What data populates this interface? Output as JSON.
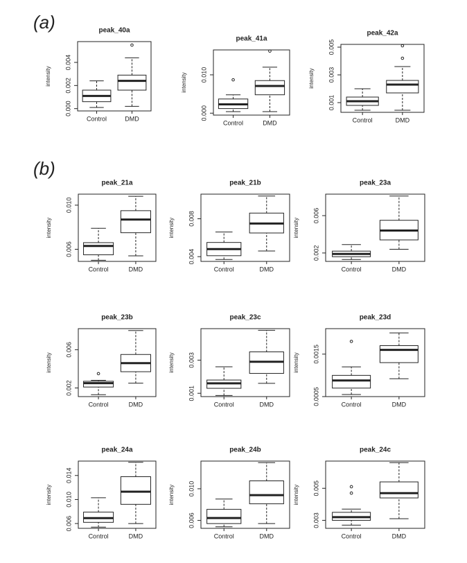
{
  "panel_labels": [
    "(a)",
    "(b)"
  ],
  "chart_data": [
    {
      "type": "box",
      "title": "peak_40a",
      "ylabel": "intensity",
      "categories": [
        "Control",
        "DMD"
      ],
      "boxes": [
        {
          "whislo": 0.0001,
          "q1": 0.0006,
          "med": 0.0011,
          "q3": 0.0016,
          "whishi": 0.0024,
          "fliers": []
        },
        {
          "whislo": 0.0002,
          "q1": 0.0016,
          "med": 0.0024,
          "q3": 0.0029,
          "whishi": 0.0044,
          "fliers": [
            0.0055
          ]
        }
      ],
      "ylim": [
        -0.0002,
        0.0058
      ],
      "yticks": [
        {
          "value": 0,
          "label": "0.000"
        },
        0.002,
        0.004
      ]
    },
    {
      "type": "box",
      "title": "peak_41a",
      "ylabel": "intensity",
      "categories": [
        "Control",
        "DMD"
      ],
      "boxes": [
        {
          "whislo": 0.0004,
          "q1": 0.0012,
          "med": 0.0023,
          "q3": 0.0037,
          "whishi": 0.0048,
          "fliers": [
            0.0087
          ]
        },
        {
          "whislo": 0.0004,
          "q1": 0.0048,
          "med": 0.0071,
          "q3": 0.0085,
          "whishi": 0.012,
          "fliers": [
            0.0162
          ]
        }
      ],
      "ylim": [
        -0.0005,
        0.0165
      ],
      "yticks": [
        {
          "value": 0,
          "label": "0.000"
        },
        {
          "value": 0.01,
          "label": "0.010"
        }
      ]
    },
    {
      "type": "box",
      "title": "peak_42a",
      "ylabel": "intensity",
      "categories": [
        "Control",
        "DMD"
      ],
      "boxes": [
        {
          "whislo": 0.00045,
          "q1": 0.0008,
          "med": 0.0011,
          "q3": 0.0014,
          "whishi": 0.002,
          "fliers": []
        },
        {
          "whislo": 0.00045,
          "q1": 0.0017,
          "med": 0.0023,
          "q3": 0.0026,
          "whishi": 0.0036,
          "fliers": [
            0.0042,
            0.0051
          ]
        }
      ],
      "ylim": [
        0.0003,
        0.0052
      ],
      "yticks": [
        0.001,
        0.003,
        0.005
      ]
    },
    {
      "type": "box",
      "title": "peak_21a",
      "ylabel": "intensity",
      "categories": [
        "Control",
        "DMD"
      ],
      "boxes": [
        {
          "whislo": 0.005,
          "q1": 0.0055,
          "med": 0.0063,
          "q3": 0.0066,
          "whishi": 0.0079,
          "fliers": []
        },
        {
          "whislo": 0.0054,
          "q1": 0.0075,
          "med": 0.0087,
          "q3": 0.0095,
          "whishi": 0.0108,
          "fliers": []
        }
      ],
      "ylim": [
        0.0049,
        0.011
      ],
      "yticks": [
        0.006,
        {
          "value": 0.01,
          "label": "0.010"
        }
      ]
    },
    {
      "type": "box",
      "title": "peak_21b",
      "ylabel": "intensity",
      "categories": [
        "Control",
        "DMD"
      ],
      "boxes": [
        {
          "whislo": 0.0037,
          "q1": 0.0041,
          "med": 0.0048,
          "q3": 0.0055,
          "whishi": 0.0066,
          "fliers": []
        },
        {
          "whislo": 0.0046,
          "q1": 0.0065,
          "med": 0.0075,
          "q3": 0.0086,
          "whishi": 0.0104,
          "fliers": []
        }
      ],
      "ylim": [
        0.0035,
        0.0106
      ],
      "yticks": [
        0.004,
        0.008
      ]
    },
    {
      "type": "box",
      "title": "peak_23a",
      "ylabel": "intensity",
      "categories": [
        "Control",
        "DMD"
      ],
      "boxes": [
        {
          "whislo": 0.0013,
          "q1": 0.0016,
          "med": 0.0019,
          "q3": 0.0022,
          "whishi": 0.0029,
          "fliers": []
        },
        {
          "whislo": 0.0024,
          "q1": 0.0034,
          "med": 0.0044,
          "q3": 0.0055,
          "whishi": 0.0081,
          "fliers": []
        }
      ],
      "ylim": [
        0.0011,
        0.0083
      ],
      "yticks": [
        0.002,
        0.006
      ]
    },
    {
      "type": "box",
      "title": "peak_23b",
      "ylabel": "intensity",
      "categories": [
        "Control",
        "DMD"
      ],
      "boxes": [
        {
          "whislo": 0.0013,
          "q1": 0.0021,
          "med": 0.0025,
          "q3": 0.0027,
          "whishi": 0.0028,
          "fliers": [
            0.0035
          ]
        },
        {
          "whislo": 0.0025,
          "q1": 0.0037,
          "med": 0.0046,
          "q3": 0.0055,
          "whishi": 0.008,
          "fliers": []
        }
      ],
      "ylim": [
        0.0011,
        0.0082
      ],
      "yticks": [
        0.002,
        0.006
      ]
    },
    {
      "type": "box",
      "title": "peak_23c",
      "ylabel": "intensity",
      "categories": [
        "Control",
        "DMD"
      ],
      "boxes": [
        {
          "whislo": 0.00087,
          "q1": 0.0013,
          "med": 0.0016,
          "q3": 0.0018,
          "whishi": 0.0026,
          "fliers": []
        },
        {
          "whislo": 0.0016,
          "q1": 0.0022,
          "med": 0.0029,
          "q3": 0.0035,
          "whishi": 0.0048,
          "fliers": []
        }
      ],
      "ylim": [
        0.0008,
        0.0049
      ],
      "yticks": [
        0.001,
        0.003
      ]
    },
    {
      "type": "box",
      "title": "peak_23d",
      "ylabel": "intensity",
      "categories": [
        "Control",
        "DMD"
      ],
      "boxes": [
        {
          "whislo": 0.00055,
          "q1": 0.0007,
          "med": 0.00088,
          "q3": 0.001,
          "whishi": 0.0012,
          "fliers": [
            0.0018
          ]
        },
        {
          "whislo": 0.00092,
          "q1": 0.0013,
          "med": 0.0016,
          "q3": 0.0017,
          "whishi": 0.002,
          "fliers": []
        }
      ],
      "ylim": [
        0.0005,
        0.0021
      ],
      "yticks": [
        0.0005,
        0.0015
      ]
    },
    {
      "type": "box",
      "title": "peak_24a",
      "ylabel": "intensity",
      "categories": [
        "Control",
        "DMD"
      ],
      "boxes": [
        {
          "whislo": 0.0054,
          "q1": 0.0062,
          "med": 0.0069,
          "q3": 0.0079,
          "whishi": 0.0103,
          "fliers": []
        },
        {
          "whislo": 0.006,
          "q1": 0.0092,
          "med": 0.0113,
          "q3": 0.0138,
          "whishi": 0.0162,
          "fliers": []
        }
      ],
      "ylim": [
        0.0052,
        0.0164
      ],
      "yticks": [
        0.006,
        {
          "value": 0.01,
          "label": "0.010"
        },
        0.014
      ]
    },
    {
      "type": "box",
      "title": "peak_24b",
      "ylabel": "intensity",
      "categories": [
        "Control",
        "DMD"
      ],
      "boxes": [
        {
          "whislo": 0.0052,
          "q1": 0.0056,
          "med": 0.0063,
          "q3": 0.0074,
          "whishi": 0.0087,
          "fliers": []
        },
        {
          "whislo": 0.0056,
          "q1": 0.0081,
          "med": 0.0092,
          "q3": 0.011,
          "whishi": 0.0133,
          "fliers": []
        }
      ],
      "ylim": [
        0.005,
        0.0135
      ],
      "yticks": [
        0.006,
        {
          "value": 0.01,
          "label": "0.010"
        }
      ]
    },
    {
      "type": "box",
      "title": "peak_24c",
      "ylabel": "intensity",
      "categories": [
        "Control",
        "DMD"
      ],
      "boxes": [
        {
          "whislo": 0.0027,
          "q1": 0.003,
          "med": 0.0032,
          "q3": 0.0035,
          "whishi": 0.0037,
          "fliers": [
            0.0047,
            0.0051
          ]
        },
        {
          "whislo": 0.0031,
          "q1": 0.0044,
          "med": 0.0047,
          "q3": 0.0054,
          "whishi": 0.0066,
          "fliers": []
        }
      ],
      "ylim": [
        0.0025,
        0.0067
      ],
      "yticks": [
        0.003,
        0.005
      ]
    }
  ]
}
